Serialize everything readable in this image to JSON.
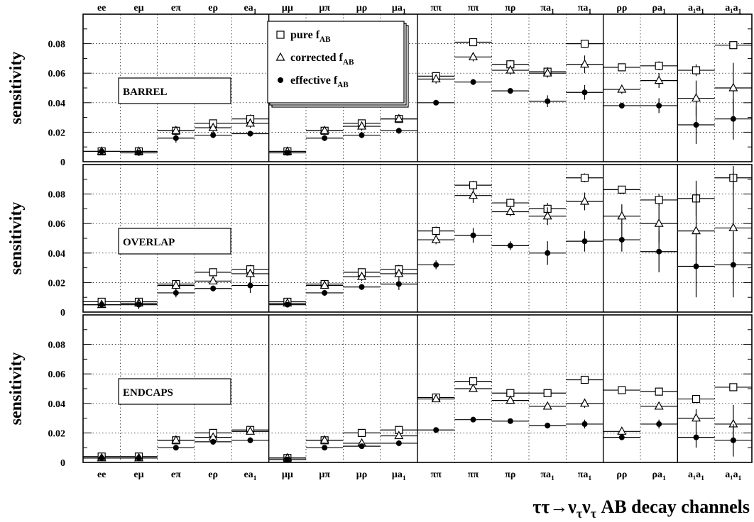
{
  "chart_data": {
    "type": "scatter",
    "categories": [
      {
        "base": "ee",
        "sub": ""
      },
      {
        "base": "eμ",
        "sub": ""
      },
      {
        "base": "eπ",
        "sub": ""
      },
      {
        "base": "eρ",
        "sub": ""
      },
      {
        "base": "ea",
        "sub": "1"
      },
      {
        "base": "μμ",
        "sub": ""
      },
      {
        "base": "μπ",
        "sub": ""
      },
      {
        "base": "μρ",
        "sub": ""
      },
      {
        "base": "μa",
        "sub": "1"
      },
      {
        "base": "ππ",
        "sub": ""
      },
      {
        "base": "ππ",
        "sub": ""
      },
      {
        "base": "πρ",
        "sub": ""
      },
      {
        "base": "πa",
        "sub": "1"
      },
      {
        "base": "πa",
        "sub": "1"
      },
      {
        "base": "ρρ",
        "sub": ""
      },
      {
        "base": "ρa",
        "sub": "1"
      },
      {
        "base": "a₁a",
        "sub": "1"
      },
      {
        "base": "a₁a",
        "sub": "1"
      }
    ],
    "group_boundaries_after": [
      4,
      8,
      13,
      15
    ],
    "ylabel": "sensitivity",
    "ylim": [
      0,
      0.1
    ],
    "yticks": [
      0,
      0.02,
      0.04,
      0.06,
      0.08
    ],
    "ytick_labels": [
      "0",
      "0.02",
      "0.04",
      "0.06",
      "0.08"
    ],
    "grid": true,
    "xlabel": {
      "pre": "ττ→ν",
      "sub1": "τ",
      "mid": "ν",
      "sub2": "τ",
      "post": " AB  decay channels"
    },
    "legend": {
      "placement": "top-center",
      "entries": [
        {
          "marker": "open-square",
          "text": "pure f",
          "sub": "AB"
        },
        {
          "marker": "open-triangle",
          "text": "corrected f",
          "sub": "AB"
        },
        {
          "marker": "filled-circle",
          "text": "effective f",
          "sub": "AB"
        }
      ]
    },
    "panels": [
      {
        "label": "BARREL",
        "series": [
          {
            "name": "pure f_AB",
            "marker": "open-square",
            "values": [
              0.007,
              0.007,
              0.021,
              0.026,
              0.029,
              0.007,
              0.021,
              0.026,
              0.029,
              0.058,
              0.081,
              0.066,
              0.061,
              0.08,
              0.064,
              0.065,
              0.062,
              0.079
            ],
            "errors": [
              0.001,
              0.001,
              0.002,
              0.002,
              0.003,
              0.001,
              0.002,
              0.002,
              0.002,
              0.002,
              0.002,
              0.003,
              0.003,
              0.002,
              0.002,
              0.003,
              0.004,
              0.002
            ]
          },
          {
            "name": "corrected f_AB",
            "marker": "open-triangle",
            "values": [
              0.007,
              0.007,
              0.021,
              0.023,
              0.026,
              0.007,
              0.021,
              0.024,
              0.029,
              0.056,
              0.071,
              0.062,
              0.06,
              0.066,
              0.049,
              0.055,
              0.043,
              0.05
            ],
            "errors": [
              0.001,
              0.001,
              0.002,
              0.003,
              0.003,
              0.001,
              0.002,
              0.003,
              0.002,
              0.003,
              0.003,
              0.003,
              0.003,
              0.006,
              0.003,
              0.005,
              0.012,
              0.017
            ]
          },
          {
            "name": "effective f_AB",
            "marker": "filled-circle",
            "values": [
              0.007,
              0.006,
              0.016,
              0.018,
              0.019,
              0.006,
              0.016,
              0.018,
              0.021,
              0.04,
              0.054,
              0.048,
              0.041,
              0.047,
              0.038,
              0.038,
              0.025,
              0.029
            ],
            "errors": [
              0.001,
              0.002,
              0.003,
              0.002,
              0.002,
              0.001,
              0.002,
              0.002,
              0.002,
              0.001,
              0.002,
              0.002,
              0.004,
              0.005,
              0.002,
              0.005,
              0.013,
              0.014
            ]
          }
        ]
      },
      {
        "label": "OVERLAP",
        "series": [
          {
            "name": "pure f_AB",
            "marker": "open-square",
            "values": [
              0.007,
              0.007,
              0.019,
              0.027,
              0.029,
              0.007,
              0.019,
              0.027,
              0.029,
              0.055,
              0.086,
              0.074,
              0.07,
              0.091,
              0.083,
              0.076,
              0.077,
              0.091
            ],
            "errors": [
              0.001,
              0.001,
              0.002,
              0.002,
              0.003,
              0.001,
              0.002,
              0.002,
              0.003,
              0.003,
              0.003,
              0.003,
              0.004,
              0.003,
              0.002,
              0.004,
              0.012,
              0.008
            ]
          },
          {
            "name": "corrected f_AB",
            "marker": "open-triangle",
            "values": [
              0.005,
              0.006,
              0.018,
              0.021,
              0.026,
              0.006,
              0.018,
              0.024,
              0.026,
              0.049,
              0.079,
              0.068,
              0.065,
              0.075,
              0.065,
              0.06,
              0.055,
              0.057
            ],
            "errors": [
              0.001,
              0.002,
              0.003,
              0.002,
              0.003,
              0.001,
              0.002,
              0.003,
              0.003,
              0.003,
              0.005,
              0.003,
              0.006,
              0.006,
              0.008,
              0.013,
              0.025,
              0.038
            ]
          },
          {
            "name": "effective f_AB",
            "marker": "filled-circle",
            "values": [
              0.005,
              0.005,
              0.013,
              0.016,
              0.018,
              0.005,
              0.013,
              0.017,
              0.019,
              0.032,
              0.052,
              0.045,
              0.04,
              0.048,
              0.049,
              0.041,
              0.031,
              0.032
            ],
            "errors": [
              0.001,
              0.003,
              0.003,
              0.002,
              0.005,
              0.001,
              0.002,
              0.002,
              0.004,
              0.003,
              0.005,
              0.003,
              0.008,
              0.007,
              0.008,
              0.014,
              0.021,
              0.022
            ]
          }
        ]
      },
      {
        "label": "ENDCAPS",
        "series": [
          {
            "name": "pure f_AB",
            "marker": "open-square",
            "values": [
              0.004,
              0.004,
              0.015,
              0.02,
              0.022,
              0.003,
              0.015,
              0.02,
              0.022,
              0.044,
              0.055,
              0.047,
              0.047,
              0.056,
              0.049,
              0.048,
              0.043,
              0.051
            ],
            "errors": [
              0.001,
              0.001,
              0.001,
              0.001,
              0.001,
              0.001,
              0.001,
              0.001,
              0.001,
              0.001,
              0.002,
              0.002,
              0.002,
              0.001,
              0.001,
              0.001,
              0.002,
              0.001
            ]
          },
          {
            "name": "corrected f_AB",
            "marker": "open-triangle",
            "values": [
              0.003,
              0.003,
              0.015,
              0.017,
              0.021,
              0.003,
              0.015,
              0.013,
              0.018,
              0.043,
              0.05,
              0.042,
              0.038,
              0.04,
              0.021,
              0.038,
              0.03,
              0.026
            ],
            "errors": [
              0.001,
              0.001,
              0.001,
              0.002,
              0.002,
              0.001,
              0.001,
              0.002,
              0.002,
              0.001,
              0.002,
              0.002,
              0.002,
              0.003,
              0.002,
              0.002,
              0.006,
              0.013
            ]
          },
          {
            "name": "effective f_AB",
            "marker": "filled-circle",
            "values": [
              0.003,
              0.003,
              0.01,
              0.014,
              0.015,
              0.002,
              0.01,
              0.011,
              0.013,
              0.022,
              0.029,
              0.028,
              0.025,
              0.026,
              0.017,
              0.026,
              0.017,
              0.015
            ],
            "errors": [
              0.001,
              0.001,
              0.001,
              0.002,
              0.002,
              0.001,
              0.001,
              0.001,
              0.002,
              0.001,
              0.001,
              0.001,
              0.002,
              0.003,
              0.001,
              0.003,
              0.007,
              0.011
            ]
          }
        ]
      }
    ]
  }
}
